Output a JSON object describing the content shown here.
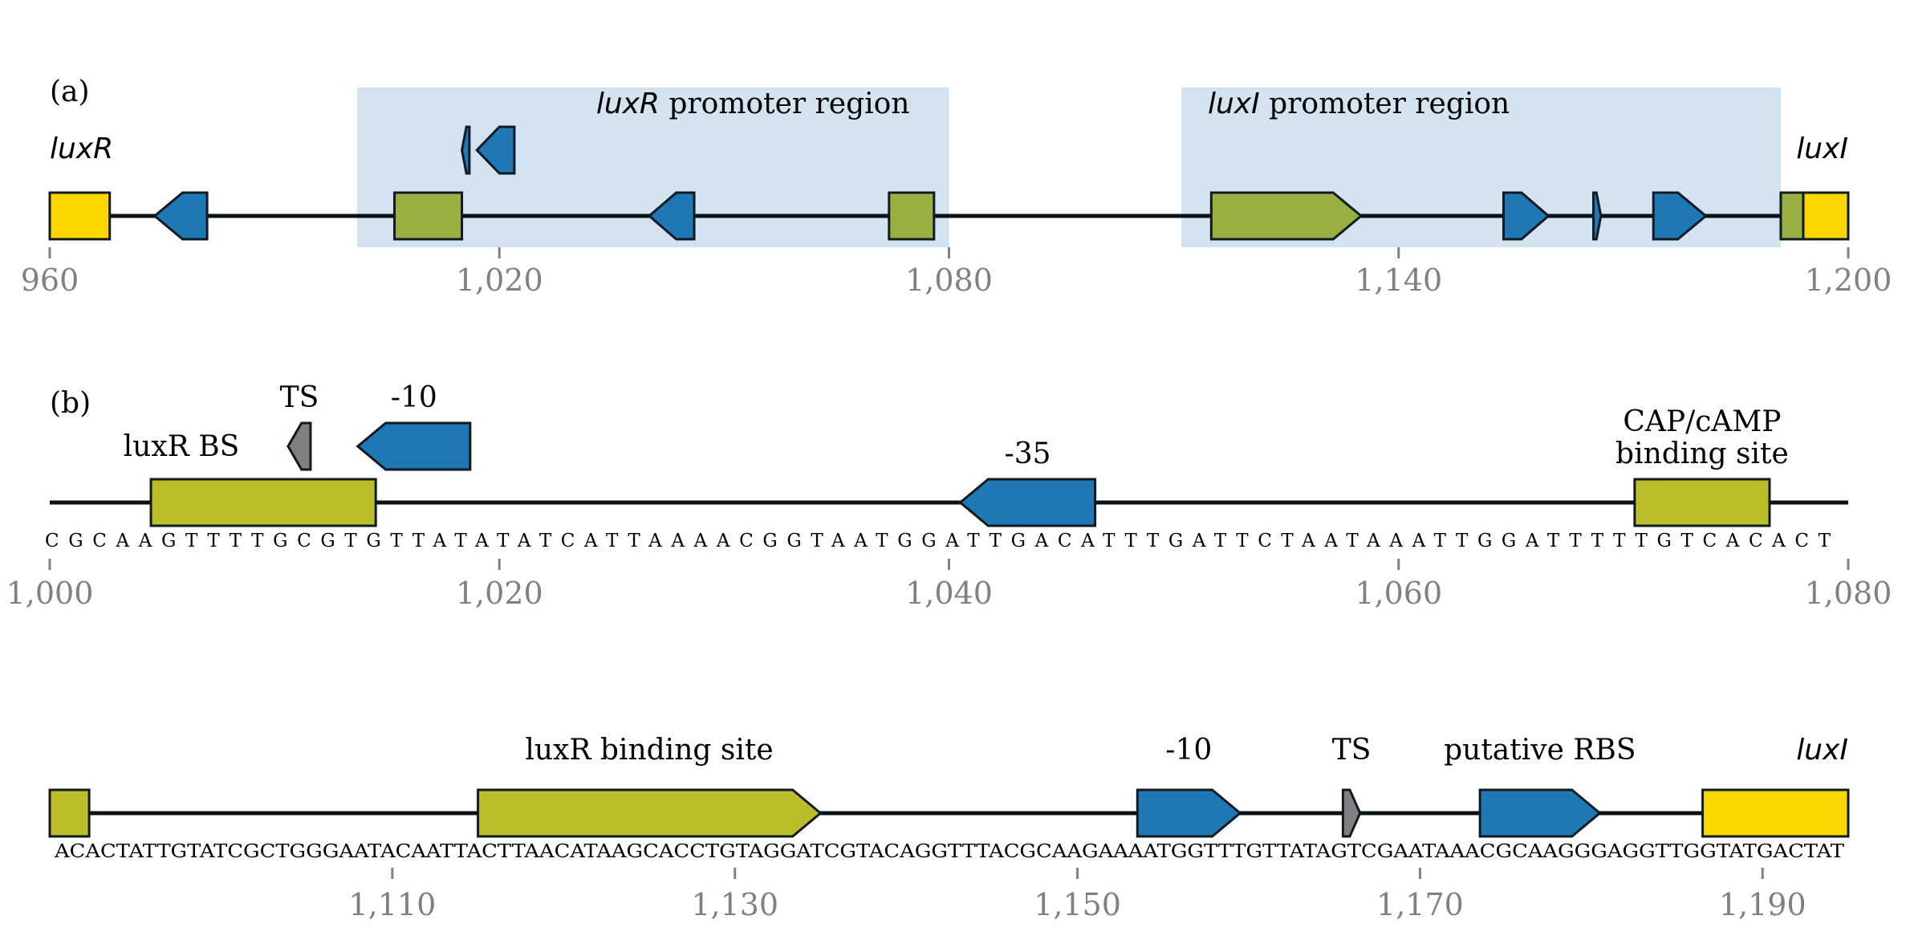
{
  "colors": {
    "gene": "#FFD700",
    "olive_a": "#99B040",
    "olive_bc": "#BABE28",
    "blue": "#1F77B4",
    "gray": "#808080",
    "region_fill": "#D3E4F0",
    "outline": "#0F1A22"
  },
  "panel_a": {
    "label": "(a)",
    "range": [
      960,
      1200
    ],
    "ticks": [
      960,
      1020,
      1080,
      1140,
      1200
    ],
    "tick_labels": [
      "960",
      "1,020",
      "1,080",
      "1,140",
      "1,200"
    ],
    "regions": [
      {
        "start": 1001,
        "end": 1080,
        "label_italic": "luxR",
        "label_rest": " promoter region"
      },
      {
        "start": 1111,
        "end": 1191,
        "label_italic": "luxI",
        "label_rest": " promoter region"
      }
    ],
    "genes": [
      {
        "label": "luxR",
        "start": 960,
        "end": 968
      },
      {
        "label": "luxI",
        "start": 1191,
        "end": 1200
      }
    ],
    "features": [
      {
        "start": 974,
        "end": 981,
        "strand": -1,
        "color": "blue",
        "row": 0
      },
      {
        "start": 1006,
        "end": 1015,
        "strand": 0,
        "color": "olive_a",
        "row": 0
      },
      {
        "start": 1015,
        "end": 1016,
        "strand": -1,
        "color": "blue",
        "row": 1
      },
      {
        "start": 1017,
        "end": 1022,
        "strand": -1,
        "color": "blue",
        "row": 1
      },
      {
        "start": 1040,
        "end": 1046,
        "strand": -1,
        "color": "blue",
        "row": 0
      },
      {
        "start": 1072,
        "end": 1078,
        "strand": 0,
        "color": "olive_a",
        "row": 0
      },
      {
        "start": 1115,
        "end": 1135,
        "strand": 1,
        "color": "olive_a",
        "row": 0
      },
      {
        "start": 1154,
        "end": 1160,
        "strand": 1,
        "color": "blue",
        "row": 0
      },
      {
        "start": 1166,
        "end": 1167,
        "strand": 1,
        "color": "blue",
        "row": 0
      },
      {
        "start": 1174,
        "end": 1181,
        "strand": 1,
        "color": "blue",
        "row": 0
      }
    ]
  },
  "panel_b": {
    "label": "(b)",
    "range": [
      1000,
      1080
    ],
    "ticks": [
      1000,
      1020,
      1040,
      1060,
      1080
    ],
    "tick_labels": [
      "1,000",
      "1,020",
      "1,040",
      "1,060",
      "1,080"
    ],
    "sequence": "CGCAAGTTTTGCGTGTTATATATCATTAAAACGGTAATGGATTGACATTTGATTCTAATAAATTGGATTTTTGTCACACT",
    "features": [
      {
        "start": 1004.5,
        "end": 1014.5,
        "strand": 0,
        "color": "olive_bc",
        "row": 0,
        "label": "luxR BS",
        "label_pos": "left"
      },
      {
        "start": 1010.6,
        "end": 1011.6,
        "strand": -1,
        "color": "gray",
        "row": 1,
        "label": "TS",
        "label_pos": "above"
      },
      {
        "start": 1013.7,
        "end": 1018.7,
        "strand": -1,
        "color": "blue",
        "row": 1,
        "label": "-10",
        "label_pos": "above"
      },
      {
        "start": 1040.5,
        "end": 1046.5,
        "strand": -1,
        "color": "blue",
        "row": 0,
        "label": "-35",
        "label_pos": "above"
      },
      {
        "start": 1070.5,
        "end": 1076.5,
        "strand": 0,
        "color": "olive_bc",
        "row": 0,
        "label": "CAP/cAMP\nbinding site",
        "label_pos": "above"
      }
    ]
  },
  "panel_c": {
    "range": [
      1090,
      1195
    ],
    "ticks": [
      1110,
      1130,
      1150,
      1170,
      1190
    ],
    "tick_labels": [
      "1,110",
      "1,130",
      "1,150",
      "1,170",
      "1,190"
    ],
    "sequence": "ACACTATTGTATCGCTGGGAATACAATTACTTAACATAAGCACCTGTAGGATCGTACAGGTTTACGCAAGAAAATGGTTTGTTATAGTCGAATAAACGCAAGGGAGGTTGGTATGACTAT",
    "features": [
      {
        "start": 1090,
        "end": 1092.3,
        "strand": 0,
        "color": "olive_bc",
        "row": 0,
        "label": "",
        "label_pos": "none"
      },
      {
        "start": 1115,
        "end": 1135,
        "strand": 1,
        "color": "olive_bc",
        "row": 0,
        "label": "luxR binding site",
        "label_pos": "above"
      },
      {
        "start": 1153.5,
        "end": 1159.5,
        "strand": 1,
        "color": "blue",
        "row": 0,
        "label": "-10",
        "label_pos": "above"
      },
      {
        "start": 1165.5,
        "end": 1166.5,
        "strand": 1,
        "color": "gray",
        "row": 0,
        "label": "TS",
        "label_pos": "above"
      },
      {
        "start": 1173.5,
        "end": 1180.5,
        "strand": 1,
        "color": "blue",
        "row": 0,
        "label": "putative RBS",
        "label_pos": "above"
      },
      {
        "start": 1186.5,
        "end": 1195,
        "strand": 0,
        "color": "gene",
        "row": 0,
        "label": "luxI",
        "label_pos": "above_italic"
      }
    ]
  }
}
